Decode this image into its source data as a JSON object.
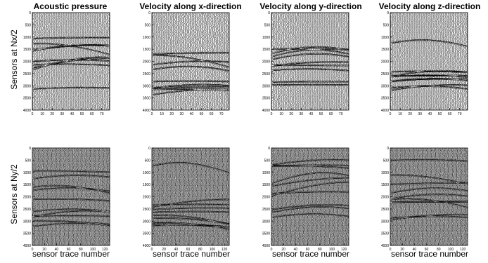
{
  "titles": [
    "Acoustic pressure",
    "Velocity along x-direction",
    "Velocity along y-direction",
    "Velocity along z-direction"
  ],
  "row_labels": [
    "Sensors at Nx/2",
    "Sensors at Ny/2"
  ],
  "xlabel": "sensor trace number",
  "trace_color": "#000000",
  "chart_data": [
    {
      "type": "seismic-wiggle",
      "row": 0,
      "title": "Acoustic pressure",
      "ylabel": "Sensors at Nx/2",
      "xlabel": "",
      "xlim": [
        0,
        78
      ],
      "ylim": [
        4000,
        0
      ],
      "xticks": [
        0,
        10,
        20,
        30,
        40,
        50,
        60,
        70
      ],
      "yticks": [
        0,
        500,
        1000,
        1500,
        2000,
        2500,
        3000,
        3500,
        4000
      ],
      "traces": 78
    },
    {
      "type": "seismic-wiggle",
      "row": 0,
      "title": "Velocity along x-direction",
      "xlabel": "",
      "xlim": [
        0,
        78
      ],
      "ylim": [
        4000,
        0
      ],
      "xticks": [
        0,
        10,
        20,
        30,
        40,
        50,
        60,
        70
      ],
      "yticks": [
        0,
        500,
        1000,
        1500,
        2000,
        2500,
        3000,
        3500,
        4000
      ],
      "traces": 78
    },
    {
      "type": "seismic-wiggle",
      "row": 0,
      "title": "Velocity along y-direction",
      "xlabel": "",
      "xlim": [
        0,
        78
      ],
      "ylim": [
        4000,
        0
      ],
      "xticks": [
        0,
        10,
        20,
        30,
        40,
        50,
        60,
        70
      ],
      "yticks": [
        0,
        500,
        1000,
        1500,
        2000,
        2500,
        3000,
        3500,
        4000
      ],
      "traces": 78
    },
    {
      "type": "seismic-wiggle",
      "row": 0,
      "title": "Velocity along z-direction",
      "xlabel": "",
      "xlim": [
        0,
        78
      ],
      "ylim": [
        4000,
        0
      ],
      "xticks": [
        0,
        10,
        20,
        30,
        40,
        50,
        60,
        70
      ],
      "yticks": [
        0,
        500,
        1000,
        1500,
        2000,
        2500,
        3000,
        3500,
        4000
      ],
      "traces": 78
    },
    {
      "type": "seismic-wiggle",
      "row": 1,
      "title": "",
      "ylabel": "Sensors at Ny/2",
      "xlabel": "sensor trace number",
      "xlim": [
        0,
        128
      ],
      "ylim": [
        4000,
        0
      ],
      "xticks": [
        0,
        20,
        40,
        60,
        80,
        100,
        120
      ],
      "yticks": [
        0,
        500,
        1000,
        1500,
        2000,
        2500,
        3000,
        3500,
        4000
      ],
      "traces": 128
    },
    {
      "type": "seismic-wiggle",
      "row": 1,
      "title": "",
      "xlabel": "sensor trace number",
      "xlim": [
        0,
        128
      ],
      "ylim": [
        4000,
        0
      ],
      "xticks": [
        0,
        20,
        40,
        60,
        80,
        100,
        120
      ],
      "yticks": [
        0,
        500,
        1000,
        1500,
        2000,
        2500,
        3000,
        3500,
        4000
      ],
      "traces": 128
    },
    {
      "type": "seismic-wiggle",
      "row": 1,
      "title": "",
      "xlabel": "sensor trace number",
      "xlim": [
        0,
        128
      ],
      "ylim": [
        4000,
        0
      ],
      "xticks": [
        0,
        20,
        40,
        60,
        80,
        100,
        120
      ],
      "yticks": [
        0,
        500,
        1000,
        1500,
        2000,
        2500,
        3000,
        3500,
        4000
      ],
      "traces": 128
    },
    {
      "type": "seismic-wiggle",
      "row": 1,
      "title": "",
      "xlabel": "sensor trace number",
      "xlim": [
        0,
        128
      ],
      "ylim": [
        4000,
        0
      ],
      "xticks": [
        0,
        20,
        40,
        60,
        80,
        100,
        120
      ],
      "yticks": [
        0,
        500,
        1000,
        1500,
        2000,
        2500,
        3000,
        3500,
        4000
      ],
      "traces": 128
    }
  ]
}
